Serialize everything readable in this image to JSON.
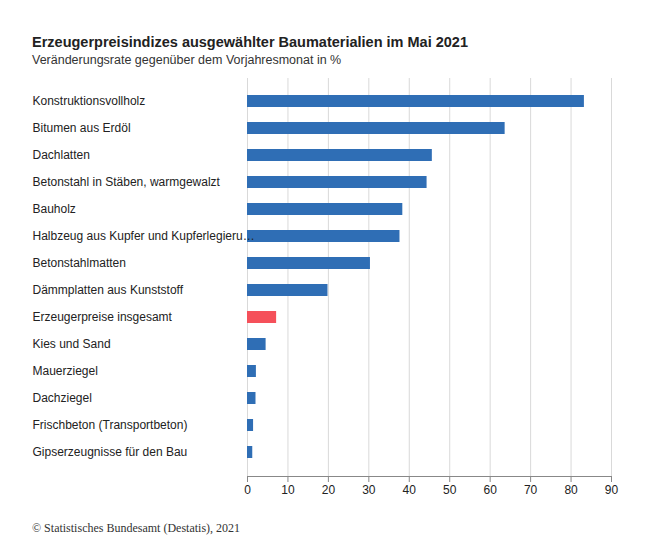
{
  "chart_data": {
    "type": "bar",
    "orientation": "horizontal",
    "title": "Erzeugerpreisindizes ausgewählter Baumaterialien im Mai 2021",
    "subtitle": "Veränderungsrate gegenüber dem Vorjahresmonat in %",
    "source": "© Statistisches Bundesamt (Destatis), 2021",
    "categories": [
      "Konstruktionsvollholz",
      "Bitumen aus Erdöl",
      "Dachlatten",
      "Betonstahl in Stäben, warmgewalzt",
      "Bauholz",
      "Halbzeug aus Kupfer und Kupferlegieru…",
      "Betonstahlmatten",
      "Dämmplatten aus Kunststoff",
      "Erzeugerpreise insgesamt",
      "Kies und Sand",
      "Mauerziegel",
      "Dachziegel",
      "Frischbeton (Transportbeton)",
      "Gipserzeugnisse für den Bau"
    ],
    "values": [
      83.3,
      63.7,
      45.7,
      44.4,
      38.4,
      37.7,
      30.4,
      19.9,
      7.2,
      4.6,
      2.2,
      2.1,
      1.5,
      1.3
    ],
    "colors": [
      "#2f6eb5",
      "#2f6eb5",
      "#2f6eb5",
      "#2f6eb5",
      "#2f6eb5",
      "#2f6eb5",
      "#2f6eb5",
      "#2f6eb5",
      "#f5505a",
      "#2f6eb5",
      "#2f6eb5",
      "#2f6eb5",
      "#2f6eb5",
      "#2f6eb5"
    ],
    "xlim": [
      0,
      90
    ],
    "xticks": [
      0,
      10,
      20,
      30,
      40,
      50,
      60,
      70,
      80,
      90
    ],
    "grid": true
  }
}
